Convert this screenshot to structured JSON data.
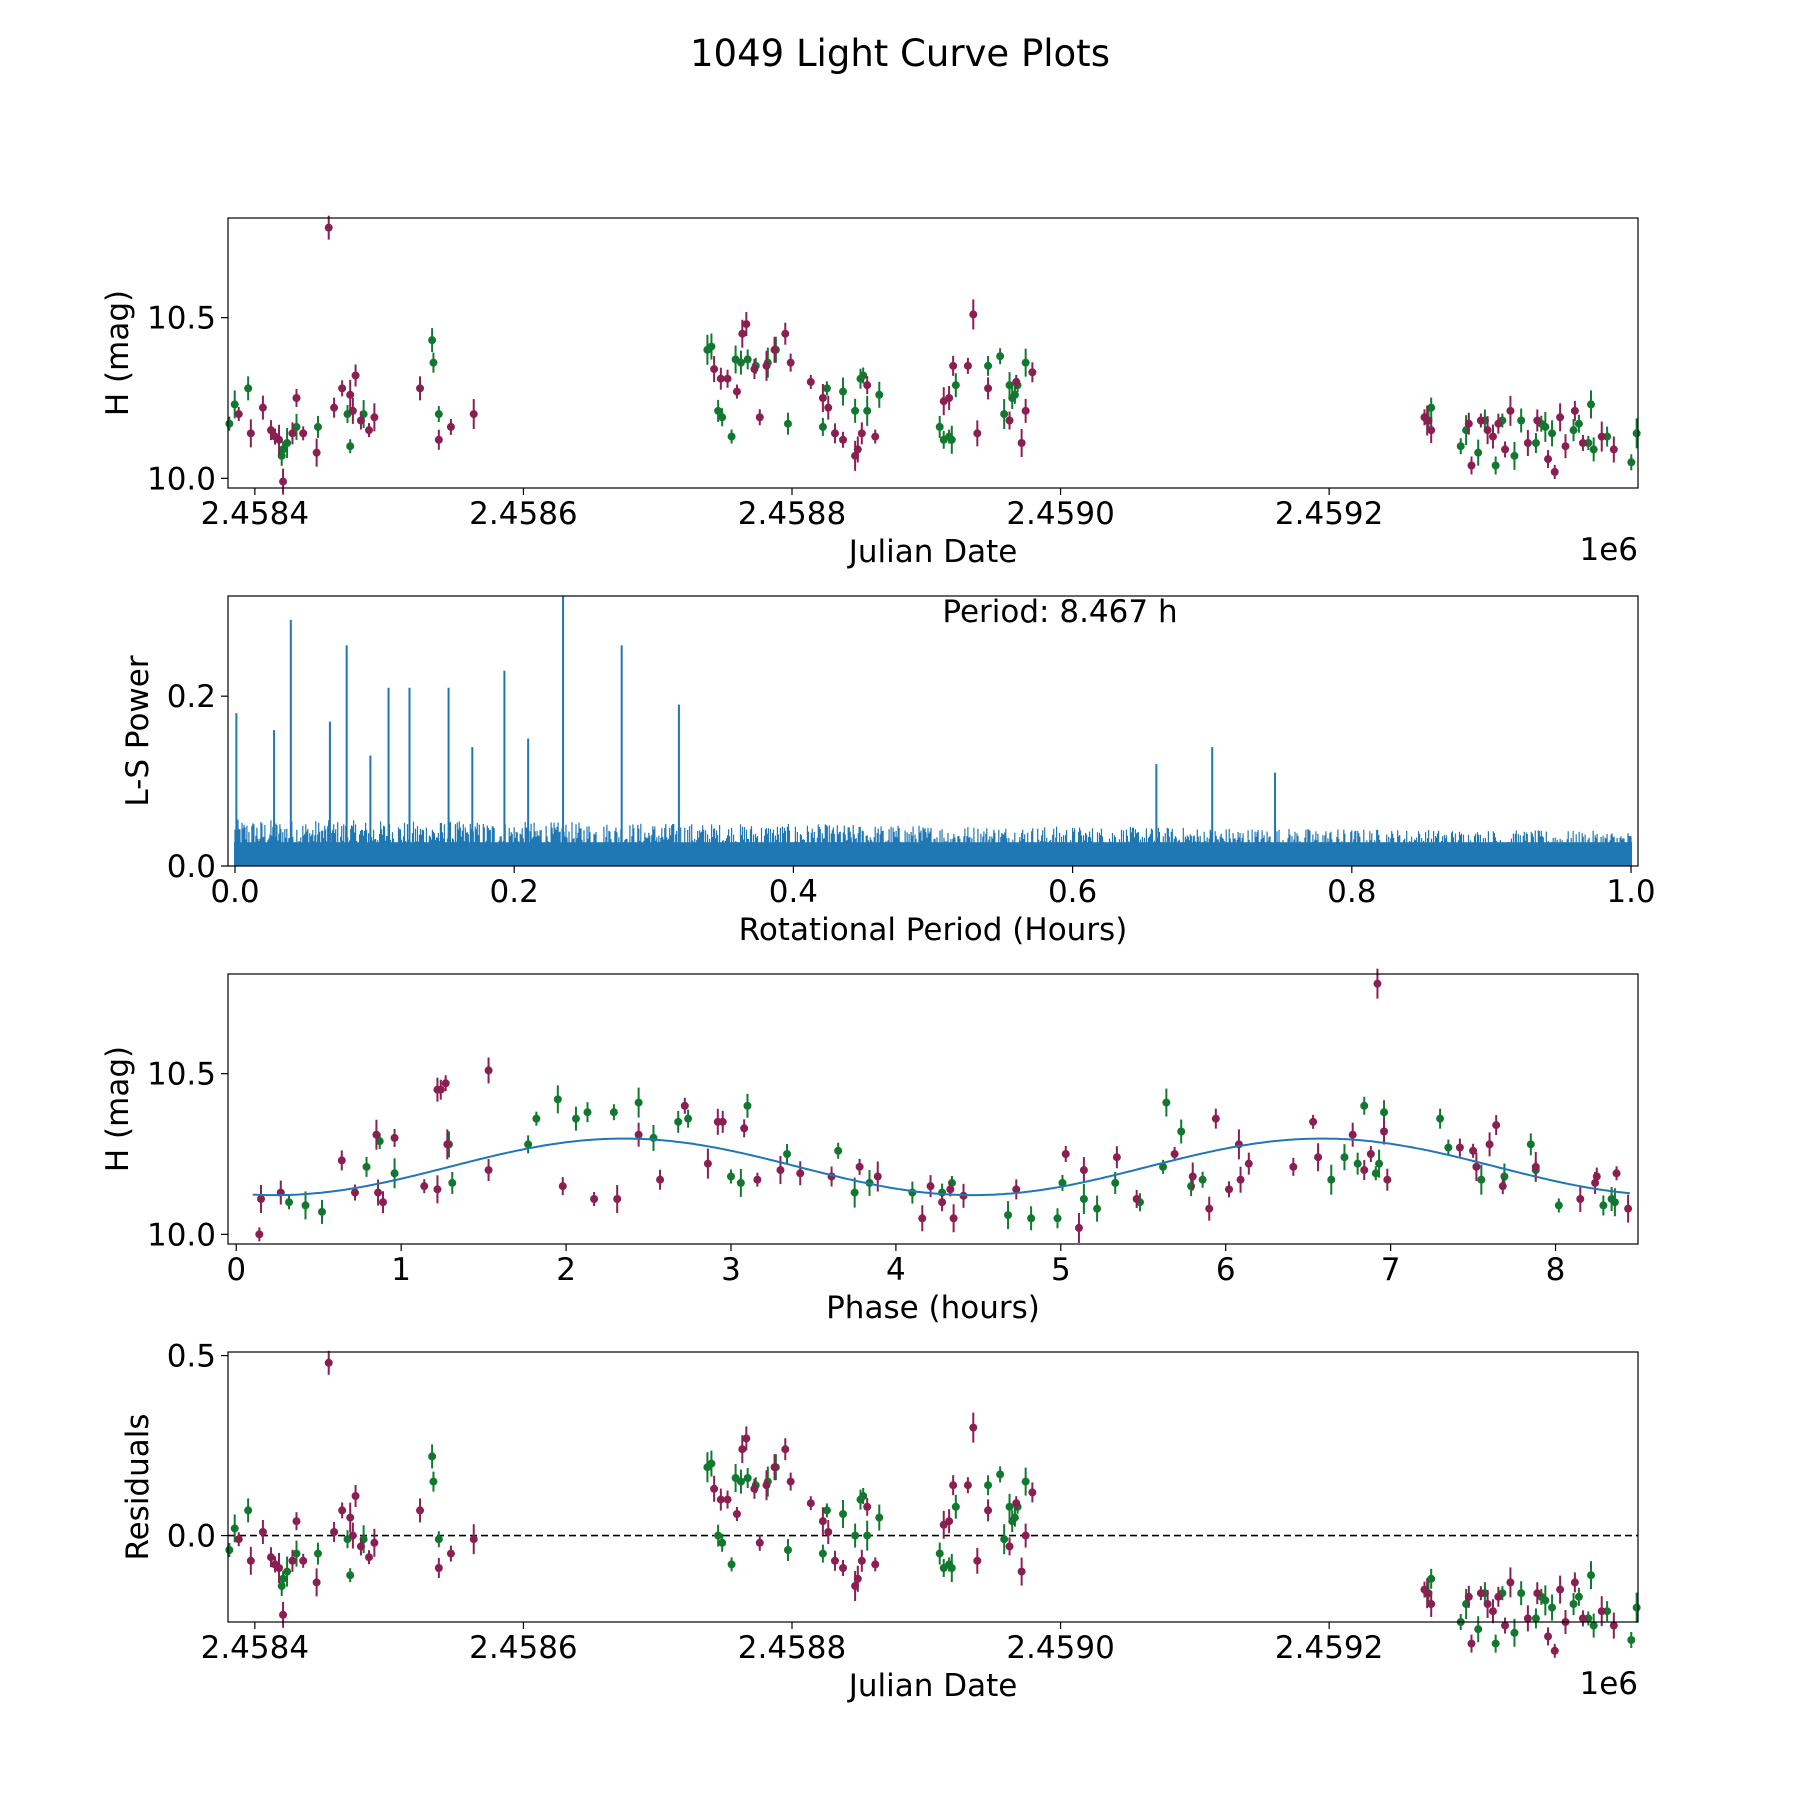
{
  "figure_title": "1049 Light Curve Plots",
  "colors": {
    "green": "#13782f",
    "maroon": "#8a1f51",
    "blue": "#1f77b4",
    "black": "#000000"
  },
  "chart_data": [
    {
      "id": "lightcurve",
      "type": "scatter",
      "xlabel": "Julian Date",
      "ylabel": "H (mag)",
      "x_offset_label": "1e6",
      "xlim": [
        2.45838,
        2.45943
      ],
      "ylim": [
        9.97,
        10.81
      ],
      "xticks": [
        2.4584,
        2.4586,
        2.4588,
        2.459,
        2.4592
      ],
      "xtick_labels": [
        "2.4584",
        "2.4586",
        "2.4588",
        "2.4590",
        "2.4592"
      ],
      "yticks": [
        10.0,
        10.5
      ],
      "ytick_labels": [
        "10.0",
        "10.5"
      ],
      "series_names": [
        "green",
        "maroon"
      ]
    },
    {
      "id": "periodogram",
      "type": "line",
      "annotation": "Period: 8.467 h",
      "xlabel": "Rotational Period (Hours)",
      "ylabel": "L-S Power",
      "xlim": [
        -0.005,
        1.005
      ],
      "ylim": [
        0,
        0.318
      ],
      "xticks": [
        0.0,
        0.2,
        0.4,
        0.6,
        0.8,
        1.0
      ],
      "xtick_labels": [
        "0.0",
        "0.2",
        "0.4",
        "0.6",
        "0.8",
        "1.0"
      ],
      "yticks": [
        0.0,
        0.2
      ],
      "ytick_labels": [
        "0.0",
        "0.2"
      ],
      "peaks": [
        [
          0.001,
          0.18
        ],
        [
          0.04,
          0.29
        ],
        [
          0.08,
          0.26
        ],
        [
          0.11,
          0.21
        ],
        [
          0.125,
          0.21
        ],
        [
          0.153,
          0.21
        ],
        [
          0.193,
          0.23
        ],
        [
          0.235,
          0.318
        ],
        [
          0.277,
          0.26
        ],
        [
          0.318,
          0.19
        ],
        [
          0.028,
          0.16
        ],
        [
          0.068,
          0.17
        ],
        [
          0.097,
          0.13
        ],
        [
          0.17,
          0.14
        ],
        [
          0.21,
          0.15
        ],
        [
          0.7,
          0.14
        ],
        [
          0.66,
          0.12
        ],
        [
          0.745,
          0.11
        ]
      ],
      "noise_level": 0.055
    },
    {
      "id": "phased",
      "type": "scatter",
      "xlabel": "Phase (hours)",
      "ylabel": "H (mag)",
      "xlim": [
        -0.05,
        8.5
      ],
      "ylim": [
        9.97,
        10.81
      ],
      "xticks": [
        0,
        1,
        2,
        3,
        4,
        5,
        6,
        7,
        8
      ],
      "xtick_labels": [
        "0",
        "1",
        "2",
        "3",
        "4",
        "5",
        "6",
        "7",
        "8"
      ],
      "yticks": [
        10.0,
        10.5
      ],
      "ytick_labels": [
        "10.0",
        "10.5"
      ],
      "model": {
        "mean": 10.21,
        "amplitude": 0.088,
        "period": 4.2335,
        "phase_of_max": 2.35
      }
    },
    {
      "id": "residuals",
      "type": "scatter",
      "xlabel": "Julian Date",
      "ylabel": "Residuals",
      "x_offset_label": "1e6",
      "xlim": [
        2.45838,
        2.45943
      ],
      "ylim": [
        -0.24,
        0.51
      ],
      "xticks": [
        2.4584,
        2.4586,
        2.4588,
        2.459,
        2.4592
      ],
      "xtick_labels": [
        "2.4584",
        "2.4586",
        "2.4588",
        "2.4590",
        "2.4592"
      ],
      "yticks": [
        0.0,
        0.5
      ],
      "ytick_labels": [
        "0.0",
        "0.5"
      ],
      "zero_line": 0.0
    }
  ],
  "observations": {
    "green": [
      [
        2.458381,
        10.17
      ],
      [
        2.458385,
        10.23
      ],
      [
        2.458395,
        10.28
      ],
      [
        2.45842,
        10.07
      ],
      [
        2.458421,
        10.09
      ],
      [
        2.458424,
        10.11
      ],
      [
        2.458431,
        10.16
      ],
      [
        2.458447,
        10.16
      ],
      [
        2.458469,
        10.2
      ],
      [
        2.458471,
        10.1
      ],
      [
        2.458481,
        10.2
      ],
      [
        2.458532,
        10.43
      ],
      [
        2.458533,
        10.36
      ],
      [
        2.458537,
        10.2
      ],
      [
        2.458737,
        10.4
      ],
      [
        2.45874,
        10.41
      ],
      [
        2.458745,
        10.21
      ],
      [
        2.458748,
        10.19
      ],
      [
        2.458755,
        10.13
      ],
      [
        2.458758,
        10.37
      ],
      [
        2.458762,
        10.36
      ],
      [
        2.458767,
        10.37
      ],
      [
        2.458773,
        10.35
      ],
      [
        2.458782,
        10.36
      ],
      [
        2.458788,
        10.4
      ],
      [
        2.458797,
        10.17
      ],
      [
        2.458823,
        10.16
      ],
      [
        2.458826,
        10.28
      ],
      [
        2.458838,
        10.27
      ],
      [
        2.458847,
        10.21
      ],
      [
        2.458851,
        10.31
      ],
      [
        2.458853,
        10.32
      ],
      [
        2.458856,
        10.21
      ],
      [
        2.458865,
        10.26
      ],
      [
        2.45891,
        10.16
      ],
      [
        2.458913,
        10.12
      ],
      [
        2.458917,
        10.13
      ],
      [
        2.458919,
        10.12
      ],
      [
        2.458922,
        10.29
      ],
      [
        2.458946,
        10.35
      ],
      [
        2.458955,
        10.38
      ],
      [
        2.458958,
        10.2
      ],
      [
        2.458962,
        10.29
      ],
      [
        2.458964,
        10.25
      ],
      [
        2.458966,
        10.26
      ],
      [
        2.458968,
        10.29
      ],
      [
        2.458974,
        10.36
      ],
      [
        2.459274,
        10.18
      ],
      [
        2.459276,
        10.22
      ],
      [
        2.459298,
        10.1
      ],
      [
        2.459302,
        10.15
      ],
      [
        2.459311,
        10.08
      ],
      [
        2.459316,
        10.18
      ],
      [
        2.459324,
        10.04
      ],
      [
        2.459329,
        10.18
      ],
      [
        2.459338,
        10.07
      ],
      [
        2.459343,
        10.18
      ],
      [
        2.459354,
        10.11
      ],
      [
        2.459358,
        10.17
      ],
      [
        2.459361,
        10.16
      ],
      [
        2.459366,
        10.14
      ],
      [
        2.459382,
        10.15
      ],
      [
        2.459386,
        10.17
      ],
      [
        2.459393,
        10.11
      ],
      [
        2.459395,
        10.23
      ],
      [
        2.459397,
        10.09
      ],
      [
        2.459407,
        10.13
      ],
      [
        2.459425,
        10.05
      ],
      [
        2.459429,
        10.14
      ]
    ],
    "maroon": [
      [
        2.458388,
        10.2
      ],
      [
        2.458397,
        10.14
      ],
      [
        2.458406,
        10.22
      ],
      [
        2.458412,
        10.15
      ],
      [
        2.458415,
        10.13
      ],
      [
        2.458418,
        10.12
      ],
      [
        2.458421,
        9.99
      ],
      [
        2.458428,
        10.14
      ],
      [
        2.458431,
        10.25
      ],
      [
        2.458436,
        10.14
      ],
      [
        2.458446,
        10.08
      ],
      [
        2.458455,
        10.78
      ],
      [
        2.458459,
        10.22
      ],
      [
        2.458465,
        10.28
      ],
      [
        2.458471,
        10.26
      ],
      [
        2.458473,
        10.21
      ],
      [
        2.458475,
        10.32
      ],
      [
        2.458479,
        10.18
      ],
      [
        2.458485,
        10.15
      ],
      [
        2.458489,
        10.19
      ],
      [
        2.458523,
        10.28
      ],
      [
        2.458537,
        10.12
      ],
      [
        2.458546,
        10.16
      ],
      [
        2.458563,
        10.2
      ],
      [
        2.458742,
        10.34
      ],
      [
        2.458747,
        10.31
      ],
      [
        2.458752,
        10.31
      ],
      [
        2.458759,
        10.27
      ],
      [
        2.458763,
        10.45
      ],
      [
        2.458766,
        10.48
      ],
      [
        2.458772,
        10.34
      ],
      [
        2.458776,
        10.19
      ],
      [
        2.458781,
        10.35
      ],
      [
        2.458787,
        10.4
      ],
      [
        2.458795,
        10.45
      ],
      [
        2.458799,
        10.36
      ],
      [
        2.458814,
        10.3
      ],
      [
        2.458823,
        10.25
      ],
      [
        2.458827,
        10.22
      ],
      [
        2.458832,
        10.14
      ],
      [
        2.458838,
        10.12
      ],
      [
        2.458847,
        10.07
      ],
      [
        2.458849,
        10.09
      ],
      [
        2.458852,
        10.14
      ],
      [
        2.458856,
        10.29
      ],
      [
        2.458862,
        10.13
      ],
      [
        2.458913,
        10.24
      ],
      [
        2.458917,
        10.25
      ],
      [
        2.45892,
        10.35
      ],
      [
        2.458931,
        10.35
      ],
      [
        2.458935,
        10.51
      ],
      [
        2.458938,
        10.14
      ],
      [
        2.458946,
        10.28
      ],
      [
        2.458962,
        10.18
      ],
      [
        2.458967,
        10.3
      ],
      [
        2.458971,
        10.11
      ],
      [
        2.458974,
        10.21
      ],
      [
        2.458979,
        10.33
      ],
      [
        2.459271,
        10.19
      ],
      [
        2.459273,
        10.18
      ],
      [
        2.459276,
        10.15
      ],
      [
        2.459304,
        10.17
      ],
      [
        2.459306,
        10.04
      ],
      [
        2.459313,
        10.18
      ],
      [
        2.459318,
        10.15
      ],
      [
        2.459322,
        10.13
      ],
      [
        2.459326,
        10.17
      ],
      [
        2.459331,
        10.09
      ],
      [
        2.459335,
        10.21
      ],
      [
        2.459348,
        10.11
      ],
      [
        2.459355,
        10.18
      ],
      [
        2.459363,
        10.06
      ],
      [
        2.459368,
        10.02
      ],
      [
        2.459372,
        10.19
      ],
      [
        2.459376,
        10.1
      ],
      [
        2.459383,
        10.21
      ],
      [
        2.459389,
        10.11
      ],
      [
        2.459403,
        10.13
      ],
      [
        2.459412,
        10.09
      ]
    ]
  },
  "phased_points": {
    "green": [
      [
        0.32,
        10.1
      ],
      [
        0.42,
        10.09
      ],
      [
        0.52,
        10.07
      ],
      [
        0.79,
        10.21
      ],
      [
        0.87,
        10.29
      ],
      [
        0.96,
        10.19
      ],
      [
        1.29,
        10.28
      ],
      [
        1.31,
        10.16
      ],
      [
        1.77,
        10.28
      ],
      [
        1.82,
        10.36
      ],
      [
        1.95,
        10.42
      ],
      [
        2.06,
        10.36
      ],
      [
        2.13,
        10.38
      ],
      [
        2.29,
        10.38
      ],
      [
        2.44,
        10.41
      ],
      [
        2.53,
        10.3
      ],
      [
        2.68,
        10.35
      ],
      [
        2.74,
        10.36
      ],
      [
        3.0,
        10.18
      ],
      [
        3.06,
        10.16
      ],
      [
        3.1,
        10.4
      ],
      [
        3.34,
        10.25
      ],
      [
        3.65,
        10.26
      ],
      [
        3.75,
        10.13
      ],
      [
        3.84,
        10.16
      ],
      [
        4.1,
        10.13
      ],
      [
        4.28,
        10.13
      ],
      [
        4.34,
        10.16
      ],
      [
        4.68,
        10.06
      ],
      [
        4.82,
        10.05
      ],
      [
        4.98,
        10.05
      ],
      [
        5.01,
        10.16
      ],
      [
        5.14,
        10.11
      ],
      [
        5.22,
        10.08
      ],
      [
        5.33,
        10.16
      ],
      [
        5.48,
        10.1
      ],
      [
        5.62,
        10.21
      ],
      [
        5.64,
        10.41
      ],
      [
        5.73,
        10.32
      ],
      [
        5.79,
        10.15
      ],
      [
        5.86,
        10.17
      ],
      [
        6.64,
        10.17
      ],
      [
        6.72,
        10.24
      ],
      [
        6.8,
        10.22
      ],
      [
        6.84,
        10.4
      ],
      [
        6.91,
        10.19
      ],
      [
        6.93,
        10.22
      ],
      [
        6.96,
        10.38
      ],
      [
        7.3,
        10.36
      ],
      [
        7.35,
        10.27
      ],
      [
        7.55,
        10.17
      ],
      [
        7.69,
        10.18
      ],
      [
        7.85,
        10.28
      ],
      [
        7.88,
        10.2
      ],
      [
        8.02,
        10.09
      ],
      [
        8.36,
        10.1
      ],
      [
        8.34,
        10.11
      ],
      [
        8.29,
        10.09
      ]
    ],
    "maroon": [
      [
        0.14,
        10.0
      ],
      [
        0.15,
        10.11
      ],
      [
        0.27,
        10.13
      ],
      [
        0.64,
        10.23
      ],
      [
        0.72,
        10.13
      ],
      [
        0.85,
        10.31
      ],
      [
        0.86,
        10.13
      ],
      [
        0.89,
        10.1
      ],
      [
        0.96,
        10.3
      ],
      [
        1.14,
        10.15
      ],
      [
        1.22,
        10.14
      ],
      [
        1.22,
        10.45
      ],
      [
        1.24,
        10.45
      ],
      [
        1.27,
        10.47
      ],
      [
        1.28,
        10.28
      ],
      [
        1.53,
        10.51
      ],
      [
        1.53,
        10.2
      ],
      [
        1.98,
        10.15
      ],
      [
        2.17,
        10.11
      ],
      [
        2.31,
        10.11
      ],
      [
        2.44,
        10.31
      ],
      [
        2.57,
        10.17
      ],
      [
        2.72,
        10.4
      ],
      [
        2.86,
        10.22
      ],
      [
        2.92,
        10.35
      ],
      [
        2.95,
        10.35
      ],
      [
        3.08,
        10.33
      ],
      [
        3.16,
        10.17
      ],
      [
        3.3,
        10.2
      ],
      [
        3.42,
        10.19
      ],
      [
        3.61,
        10.18
      ],
      [
        3.78,
        10.21
      ],
      [
        3.89,
        10.18
      ],
      [
        4.16,
        10.05
      ],
      [
        4.21,
        10.15
      ],
      [
        4.28,
        10.1
      ],
      [
        4.33,
        10.14
      ],
      [
        4.35,
        10.05
      ],
      [
        4.41,
        10.12
      ],
      [
        4.73,
        10.14
      ],
      [
        5.03,
        10.25
      ],
      [
        5.11,
        10.02
      ],
      [
        5.14,
        10.2
      ],
      [
        5.34,
        10.24
      ],
      [
        5.46,
        10.11
      ],
      [
        5.69,
        10.25
      ],
      [
        5.8,
        10.18
      ],
      [
        5.9,
        10.08
      ],
      [
        5.94,
        10.36
      ],
      [
        6.02,
        10.14
      ],
      [
        6.08,
        10.28
      ],
      [
        6.09,
        10.17
      ],
      [
        6.14,
        10.22
      ],
      [
        6.41,
        10.21
      ],
      [
        6.53,
        10.35
      ],
      [
        6.56,
        10.24
      ],
      [
        6.77,
        10.31
      ],
      [
        6.84,
        10.2
      ],
      [
        6.88,
        10.25
      ],
      [
        6.92,
        10.78
      ],
      [
        6.96,
        10.32
      ],
      [
        6.98,
        10.17
      ],
      [
        7.42,
        10.27
      ],
      [
        7.5,
        10.26
      ],
      [
        7.52,
        10.21
      ],
      [
        7.6,
        10.28
      ],
      [
        7.64,
        10.34
      ],
      [
        7.68,
        10.15
      ],
      [
        7.88,
        10.21
      ],
      [
        8.15,
        10.11
      ],
      [
        8.24,
        10.16
      ],
      [
        8.25,
        10.18
      ],
      [
        8.37,
        10.19
      ],
      [
        8.44,
        10.08
      ]
    ]
  }
}
